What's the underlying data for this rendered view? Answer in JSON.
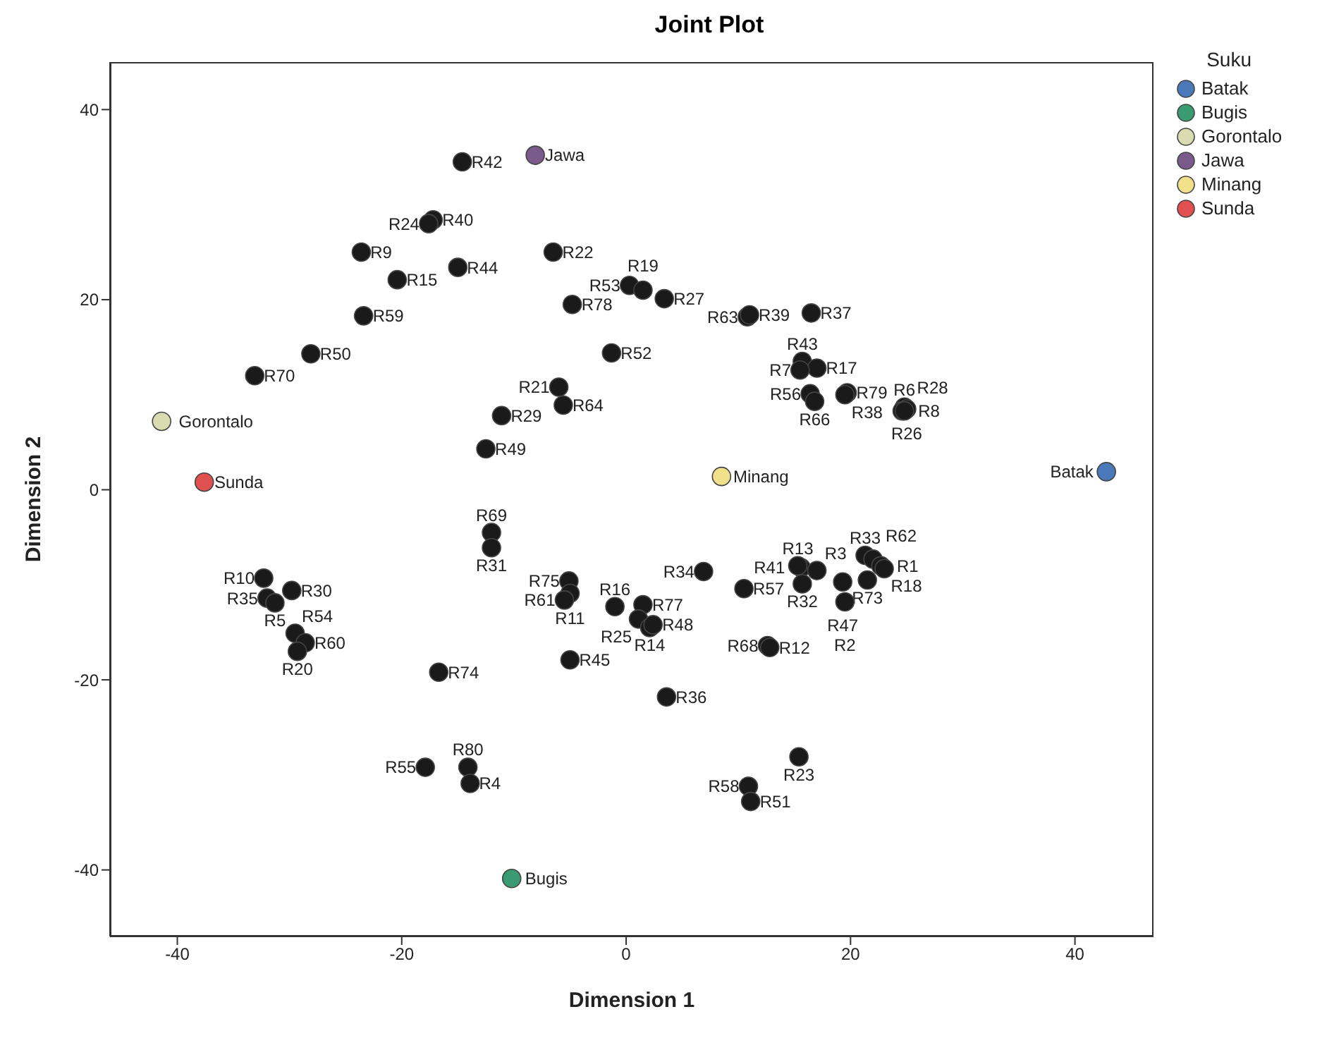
{
  "chart_data": {
    "type": "scatter",
    "title": "Joint Plot",
    "xlabel": "Dimension 1",
    "ylabel": "Dimension 2",
    "legend_title": "Suku",
    "legend": "top right",
    "marker": "circle",
    "xlim": [
      -46,
      47
    ],
    "ylim": [
      -47,
      45
    ],
    "xticks": [
      -40,
      -20,
      0,
      20,
      40
    ],
    "yticks": [
      -40,
      -20,
      0,
      20,
      40
    ],
    "series": [
      {
        "color": "#1a1a1a",
        "x": [
          -14.6,
          -17.2,
          -17.6,
          -23.6,
          -15.0,
          -20.4,
          -6.5,
          -4.8,
          -23.4,
          -28.1,
          -33.1,
          -1.3,
          -11.1,
          -12.5,
          -6.0,
          -5.6,
          0.3,
          1.5,
          3.4,
          10.8,
          11.0,
          16.5,
          15.7,
          17.0,
          15.5,
          16.4,
          16.8,
          19.7,
          19.5,
          24.8,
          24.6,
          25.0,
          24.8,
          -12.0,
          -12.0,
          -32.3,
          -29.8,
          -32.0,
          -31.3,
          -29.5,
          -28.6,
          -29.3,
          -16.7,
          -5.1,
          -5.0,
          -5.5,
          -5.0,
          -17.9,
          -14.1,
          -13.9,
          -1.0,
          1.5,
          1.1,
          2.1,
          2.4,
          6.9,
          10.5,
          15.6,
          15.3,
          17.0,
          15.7,
          21.3,
          22.0,
          22.7,
          23.0,
          21.5,
          19.3,
          19.5,
          12.6,
          12.8,
          3.6,
          15.4,
          10.9,
          11.1
        ],
        "values": [
          34.5,
          28.4,
          28.0,
          25.0,
          23.4,
          22.1,
          25.0,
          19.5,
          18.3,
          14.3,
          12.0,
          14.4,
          7.8,
          4.3,
          10.8,
          8.9,
          21.5,
          21.0,
          20.1,
          18.2,
          18.4,
          18.6,
          13.5,
          12.8,
          12.6,
          10.1,
          9.3,
          10.2,
          10.0,
          8.7,
          8.3,
          8.5,
          8.3,
          -4.5,
          -6.1,
          -9.3,
          -10.6,
          -11.4,
          -11.9,
          -15.1,
          -16.1,
          -17.0,
          -19.2,
          -9.6,
          -10.9,
          -11.6,
          -17.9,
          -29.2,
          -29.2,
          -30.9,
          -12.3,
          -12.1,
          -13.6,
          -14.5,
          -14.2,
          -8.6,
          -10.4,
          -8.2,
          -8.0,
          -8.5,
          -9.9,
          -6.9,
          -7.3,
          -8.0,
          -8.3,
          -9.5,
          -9.7,
          -11.8,
          -16.4,
          -16.6,
          -21.8,
          -28.1,
          -31.2,
          -32.8
        ],
        "value_labels": [
          "R42",
          "R40",
          "R24",
          "R9",
          "R44",
          "R15",
          "R22",
          "R78",
          "R59",
          "R50",
          "R70",
          "R52",
          "R29",
          "R49",
          "R21",
          "R64",
          "R53",
          "R19",
          "R27",
          "R63",
          "R39",
          "R37",
          "R43",
          "R17",
          "R7",
          "R56",
          "R66",
          "R79",
          "R38",
          "R6",
          "R8",
          "R26",
          "R28",
          "R69",
          "R31",
          "R10",
          "R30",
          "R35",
          "R5",
          "R54",
          "R60",
          "R20",
          "R74",
          "R75",
          "R11",
          "R61",
          "R45",
          "R55",
          "R80",
          "R4",
          "R16",
          "R77",
          "R25",
          "R14",
          "R48",
          "R34",
          "R57",
          "R41",
          "R13",
          "R3",
          "R32",
          "R33",
          "R62",
          "R1",
          "R18",
          "R73",
          "R47",
          "R2",
          "R68",
          "R12",
          "R36",
          "R23",
          "R58",
          "R51"
        ]
      },
      {
        "name": "Batak",
        "color": "#4a78b8",
        "x": [
          42.8
        ],
        "values": [
          1.9
        ],
        "value_labels": [
          "Batak"
        ]
      },
      {
        "name": "Bugis",
        "color": "#3a9a70",
        "x": [
          -10.2
        ],
        "values": [
          -40.9
        ],
        "value_labels": [
          "Bugis"
        ]
      },
      {
        "name": "Gorontalo",
        "color": "#d8dcb0",
        "x": [
          -41.4
        ],
        "values": [
          7.2
        ],
        "value_labels": [
          "Gorontalo"
        ]
      },
      {
        "name": "Jawa",
        "color": "#7a5a8a",
        "x": [
          -8.1
        ],
        "values": [
          35.2
        ],
        "value_labels": [
          "Jawa"
        ]
      },
      {
        "name": "Minang",
        "color": "#f0e08a",
        "x": [
          8.5
        ],
        "values": [
          1.4
        ],
        "value_labels": [
          "Minang"
        ]
      },
      {
        "name": "Sunda",
        "color": "#e05050",
        "x": [
          -37.6
        ],
        "values": [
          0.8
        ],
        "value_labels": [
          "Sunda"
        ]
      }
    ]
  }
}
